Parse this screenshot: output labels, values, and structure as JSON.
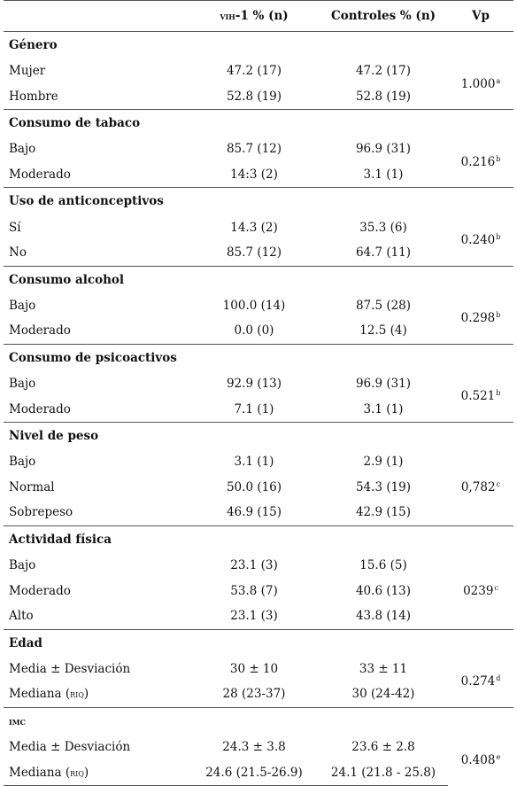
{
  "header": {
    "col1": "",
    "col2_sc": "VIH",
    "col2_rest": "-1 % (n)",
    "col3": "Controles % (n)",
    "col4": "Vp"
  },
  "sections": [
    {
      "title": "Género",
      "vp": "1.000",
      "sup": "a",
      "rows": [
        {
          "label": "Mujer",
          "vih": "47.2 (17)",
          "ctrl": "47.2 (17)"
        },
        {
          "label": "Hombre",
          "vih": "52.8 (19)",
          "ctrl": "52.8 (19)"
        }
      ]
    },
    {
      "title": "Consumo de tabaco",
      "vp": "0.216",
      "sup": "b",
      "rows": [
        {
          "label": "Bajo",
          "vih": "85.7 (12)",
          "ctrl": "96.9 (31)"
        },
        {
          "label": "Moderado",
          "vih": "14:3 (2)",
          "ctrl": "3.1 (1)"
        }
      ]
    },
    {
      "title": "Uso de anticonceptivos",
      "vp": "0.240",
      "sup": "b",
      "rows": [
        {
          "label": "Sí",
          "vih": "14.3 (2)",
          "ctrl": "35.3 (6)"
        },
        {
          "label": "No",
          "vih": "85.7 (12)",
          "ctrl": "64.7 (11)"
        }
      ]
    },
    {
      "title": "Consumo alcohol",
      "vp": "0.298",
      "sup": "b",
      "rows": [
        {
          "label": "Bajo",
          "vih": "100.0 (14)",
          "ctrl": "87.5 (28)"
        },
        {
          "label": "Moderado",
          "vih": "0.0 (0)",
          "ctrl": "12.5 (4)"
        }
      ]
    },
    {
      "title": "Consumo de psicoactivos",
      "vp": "0.521",
      "sup": "b",
      "rows": [
        {
          "label": "Bajo",
          "vih": "92.9 (13)",
          "ctrl": "96.9 (31)"
        },
        {
          "label": "Moderado",
          "vih": "7.1 (1)",
          "ctrl": "3.1 (1)"
        }
      ]
    },
    {
      "title": "Nivel de peso",
      "vp": "0,782",
      "sup": "c",
      "rows": [
        {
          "label": "Bajo",
          "vih": "3.1 (1)",
          "ctrl": "2.9 (1)"
        },
        {
          "label": "Normal",
          "vih": "50.0 (16)",
          "ctrl": "54.3 (19)"
        },
        {
          "label": "Sobrepeso",
          "vih": "46.9 (15)",
          "ctrl": "42.9 (15)"
        }
      ]
    },
    {
      "title": "Actividad física",
      "vp": "0239",
      "sup": "c",
      "rows": [
        {
          "label": "Bajo",
          "vih": "23.1 (3)",
          "ctrl": "15.6 (5)"
        },
        {
          "label": "Moderado",
          "vih": "53.8 (7)",
          "ctrl": "40.6 (13)"
        },
        {
          "label": "Alto",
          "vih": "23.1 (3)",
          "ctrl": "43.8 (14)"
        }
      ]
    },
    {
      "title": "Edad",
      "vp": "0.274",
      "sup": "d",
      "rows": [
        {
          "label": "Media ± Desviación",
          "vih": "30 ± 10",
          "ctrl": "33 ± 11"
        },
        {
          "label": "Mediana",
          "label_sc": "RIQ",
          "vih": "28 (23-37)",
          "ctrl": "30 (24-42)"
        }
      ]
    },
    {
      "title_sc": "IMC",
      "vp": "0.408",
      "sup": "e",
      "rows": [
        {
          "label": "Media ± Desviación",
          "vih": "24.3 ± 3.8",
          "ctrl": "23.6 ± 2.8"
        },
        {
          "label": "Mediana",
          "label_sc": "RIQ",
          "vih": "24.6 (21.5-26.9)",
          "ctrl": "24.1 (21.8 - 25.8)"
        }
      ]
    }
  ]
}
